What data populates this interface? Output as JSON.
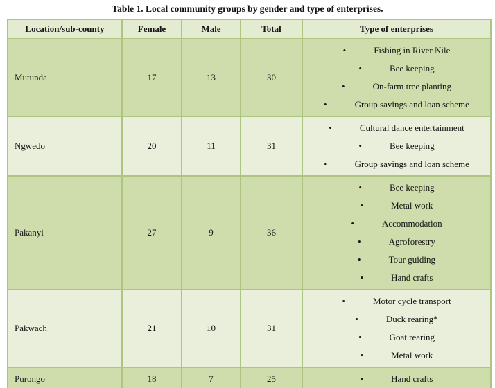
{
  "page": {
    "title": "Table 1. Local community groups by gender and type of enterprises."
  },
  "table": {
    "bullet_glyph": "•",
    "columns": [
      "Location/sub-county",
      "Female",
      "Male",
      "Total",
      "Type of enterprises"
    ],
    "rows": [
      {
        "location": "Mutunda",
        "female": "17",
        "male": "13",
        "total": "30",
        "enterprises": [
          "Fishing in River Nile",
          "Bee keeping",
          "On-farm tree planting",
          "Group savings and loan scheme"
        ]
      },
      {
        "location": "Ngwedo",
        "female": "20",
        "male": "11",
        "total": "31",
        "enterprises": [
          "Cultural dance entertainment",
          "Bee keeping",
          "Group savings and loan scheme"
        ]
      },
      {
        "location": "Pakanyi",
        "female": "27",
        "male": "9",
        "total": "36",
        "enterprises": [
          "Bee keeping",
          "Metal work",
          "Accommodation",
          "Agroforestry",
          "Tour guiding",
          "Hand crafts"
        ]
      },
      {
        "location": "Pakwach",
        "female": "21",
        "male": "10",
        "total": "31",
        "enterprises": [
          "Motor cycle transport",
          "Duck rearing*",
          "Goat rearing",
          "Metal work"
        ]
      },
      {
        "location": "Purongo",
        "female": "18",
        "male": "7",
        "total": "25",
        "enterprises": [
          "Hand crafts"
        ]
      }
    ]
  },
  "colors": {
    "header_bg": "#e3ebd0",
    "row_band_dark": "#cfddac",
    "row_band_light": "#e9efdb",
    "table_border": "#adc580",
    "text": "#151515",
    "page_bg": "#ffffff"
  }
}
